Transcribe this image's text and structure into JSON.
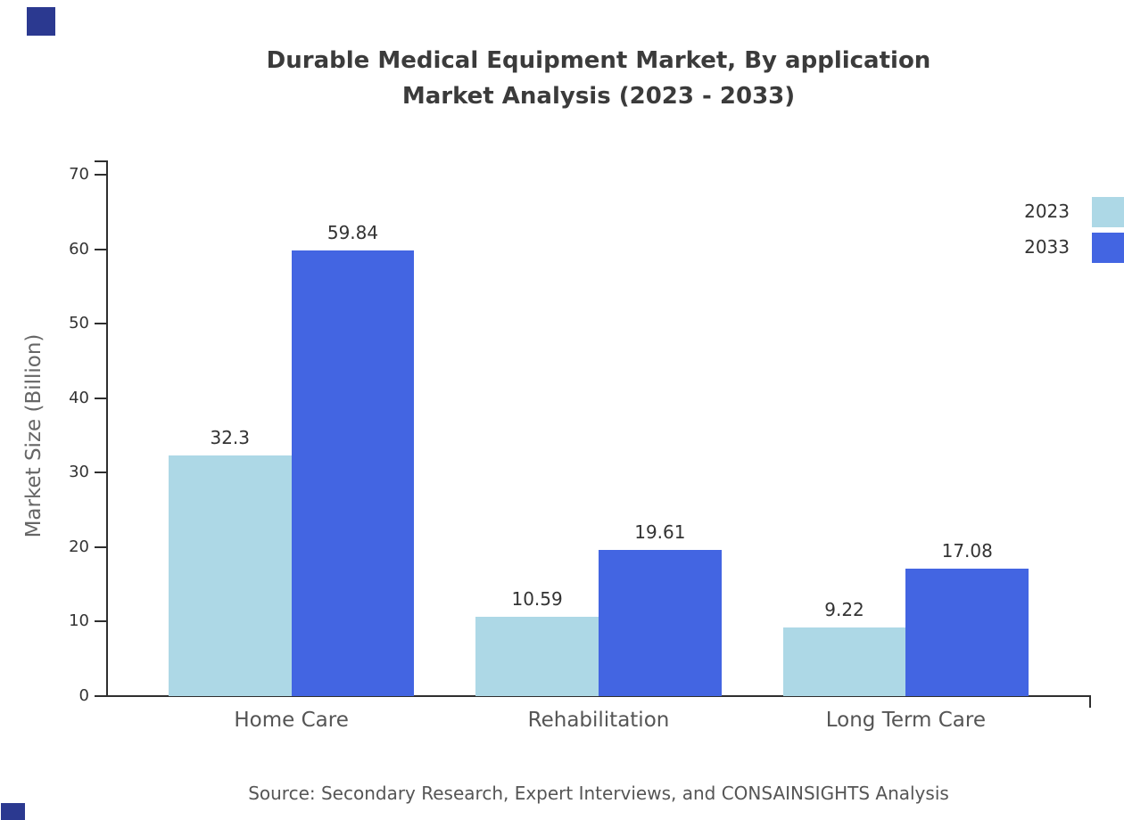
{
  "title_line1": "Durable Medical Equipment Market, By application",
  "title_line2": "Market Analysis (2023 - 2033)",
  "chart_data": {
    "type": "bar",
    "title": "Durable Medical Equipment Market, By application Market Analysis (2023 - 2033)",
    "categories": [
      "Home Care",
      "Rehabilitation",
      "Long Term Care"
    ],
    "series": [
      {
        "name": "2023",
        "color": "#add8e6",
        "values": [
          32.3,
          10.59,
          9.22
        ]
      },
      {
        "name": "2033",
        "color": "#4365e2",
        "values": [
          59.84,
          19.61,
          17.08
        ]
      }
    ],
    "value_labels": [
      [
        "32.3",
        "10.59",
        "9.22"
      ],
      [
        "59.84",
        "19.61",
        "17.08"
      ]
    ],
    "xlabel": "",
    "ylabel": "Market Size (Billion)",
    "ylim": [
      0,
      70
    ],
    "yticks": [
      0,
      10,
      20,
      30,
      40,
      50,
      60,
      70
    ],
    "grid": false,
    "legend_position": "top-right"
  },
  "source": "Source: Secondary Research, Expert Interviews, and CONSAINSIGHTS Analysis",
  "decor": {
    "corner_color": "#2b3990"
  }
}
